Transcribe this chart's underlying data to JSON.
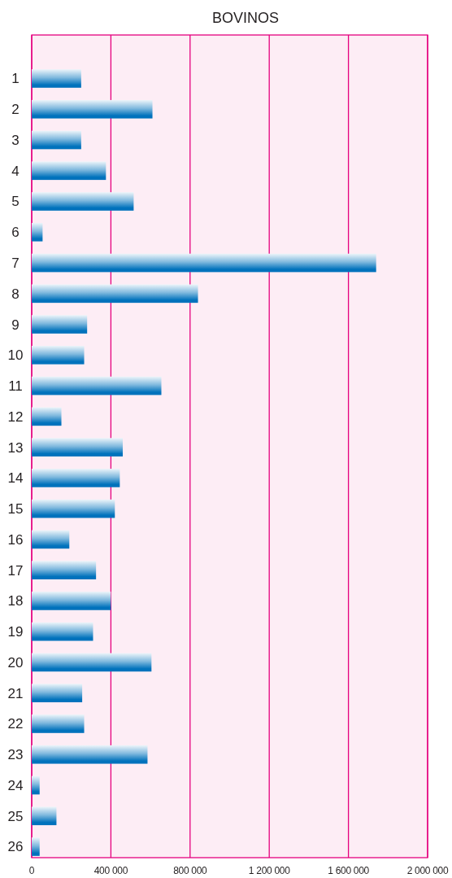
{
  "chart_data": {
    "type": "bar",
    "title": "BOVINOS",
    "orientation": "horizontal",
    "categories": [
      "1",
      "2",
      "3",
      "4",
      "5",
      "6",
      "7",
      "8",
      "9",
      "10",
      "11",
      "12",
      "13",
      "14",
      "15",
      "16",
      "17",
      "18",
      "19",
      "20",
      "21",
      "22",
      "23",
      "24",
      "25",
      "26"
    ],
    "values": [
      250000,
      610000,
      250000,
      375000,
      515000,
      55000,
      1740000,
      840000,
      280000,
      265000,
      655000,
      150000,
      460000,
      445000,
      420000,
      190000,
      325000,
      400000,
      310000,
      605000,
      255000,
      265000,
      585000,
      40000,
      125000,
      40000
    ],
    "color": "#0072bc",
    "xlim": [
      0,
      2000000
    ],
    "xticks": [
      0,
      {
        "value": 400000,
        "label": "400 000"
      },
      {
        "value": 800000,
        "label": "800 000"
      },
      {
        "value": 1200000,
        "label": "1 200 000"
      },
      {
        "value": 1600000,
        "label": "1 600 000"
      },
      {
        "value": 2000000,
        "label": "2 000 000"
      }
    ],
    "grid": "x"
  }
}
